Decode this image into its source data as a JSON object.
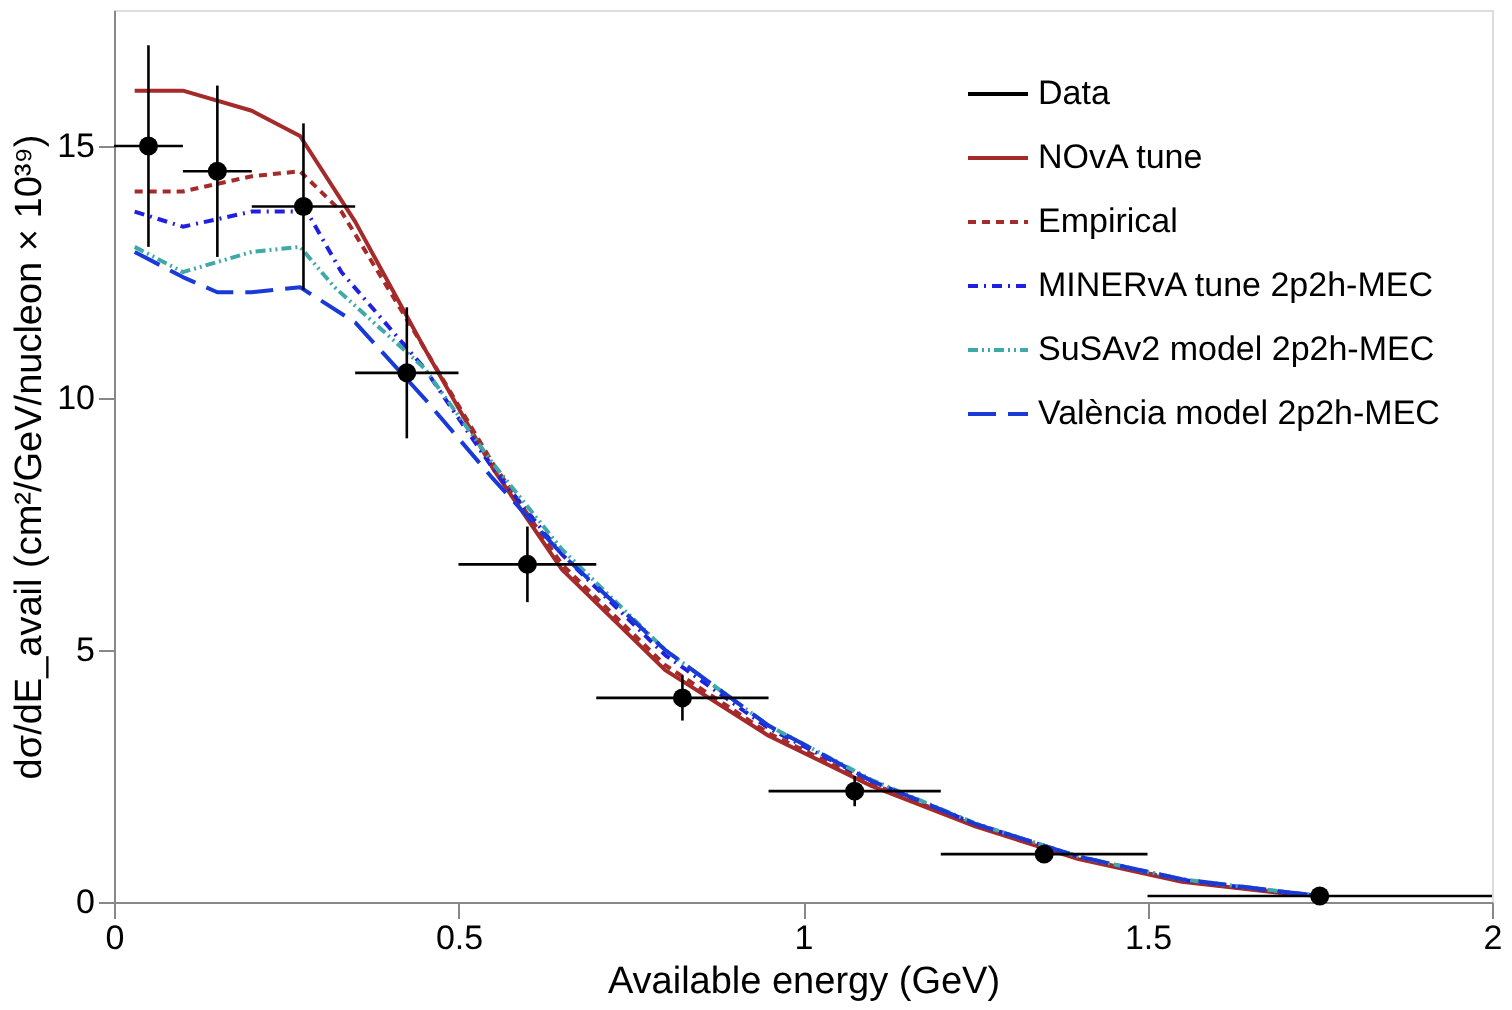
{
  "chart_data": {
    "type": "line",
    "xlabel": "Available energy (GeV)",
    "ylabel": "dσ/dE_avail (cm²/GeV/nucleon × 10³⁹)",
    "xlim": [
      0,
      2
    ],
    "ylim": [
      0,
      17.7
    ],
    "xticks": [
      {
        "value": 0,
        "label": "0"
      },
      0.5,
      {
        "value": 1,
        "label": "1"
      },
      1.5,
      {
        "value": 2,
        "label": "2"
      }
    ],
    "yticks": [
      0,
      5,
      10,
      15
    ],
    "grid": false,
    "legend": "top right",
    "series": [
      {
        "name": "Data",
        "type": "scatter",
        "marker": "circle",
        "color": "#000000",
        "x": [
          0.05,
          0.15,
          0.275,
          0.425,
          0.6,
          0.825,
          1.075,
          1.35,
          1.75
        ],
        "values": [
          15.0,
          14.5,
          13.8,
          10.5,
          6.7,
          4.05,
          2.2,
          0.95,
          0.12
        ],
        "errors": [
          2.0,
          1.7,
          1.65,
          1.3,
          0.75,
          0.45,
          0.3,
          0.1,
          null
        ],
        "xerrors": [
          [
            0,
            0.1
          ],
          [
            0.1,
            0.2
          ],
          [
            0.2,
            0.35
          ],
          [
            0.35,
            0.5
          ],
          [
            0.5,
            0.7
          ],
          [
            0.7,
            0.95
          ],
          [
            0.95,
            1.2
          ],
          [
            1.2,
            1.5
          ],
          [
            1.5,
            2.0
          ]
        ]
      },
      {
        "name": "NOvA tune",
        "line_style": "solid",
        "color": "#a52a2a",
        "x": [
          0.03,
          0.1,
          0.2,
          0.27,
          0.35,
          0.45,
          0.55,
          0.65,
          0.8,
          0.95,
          1.1,
          1.25,
          1.4,
          1.55,
          1.7,
          1.75
        ],
        "values": [
          16.1,
          16.1,
          15.7,
          15.2,
          13.5,
          11.0,
          8.6,
          6.6,
          4.6,
          3.3,
          2.3,
          1.5,
          0.85,
          0.4,
          0.17,
          0.12
        ]
      },
      {
        "name": "Empirical",
        "line_style": "dashed",
        "color": "#a52a2a",
        "x": [
          0.03,
          0.1,
          0.2,
          0.27,
          0.33,
          0.45,
          0.55,
          0.65,
          0.8,
          0.95,
          1.1,
          1.25,
          1.4,
          1.55,
          1.7,
          1.75
        ],
        "values": [
          14.1,
          14.1,
          14.4,
          14.5,
          13.7,
          11.0,
          8.7,
          6.7,
          4.7,
          3.35,
          2.35,
          1.52,
          0.87,
          0.42,
          0.18,
          0.12
        ]
      },
      {
        "name": "MINERvA tune 2p2h-MEC",
        "line_style": "dashdot",
        "color": "#2020e0",
        "x": [
          0.03,
          0.1,
          0.2,
          0.28,
          0.33,
          0.45,
          0.55,
          0.65,
          0.8,
          0.95,
          1.1,
          1.25,
          1.4,
          1.55,
          1.7,
          1.75
        ],
        "values": [
          13.7,
          13.4,
          13.7,
          13.7,
          12.5,
          10.6,
          8.6,
          6.9,
          4.9,
          3.45,
          2.4,
          1.55,
          0.9,
          0.44,
          0.19,
          0.12
        ]
      },
      {
        "name": "SuSAv2 model 2p2h-MEC",
        "line_style": "dashdotdot",
        "color": "#3fa9a9",
        "x": [
          0.03,
          0.1,
          0.2,
          0.27,
          0.32,
          0.45,
          0.55,
          0.65,
          0.8,
          0.95,
          1.1,
          1.25,
          1.4,
          1.55,
          1.7,
          1.75
        ],
        "values": [
          13.0,
          12.5,
          12.9,
          13.0,
          12.2,
          10.6,
          8.7,
          7.0,
          5.0,
          3.5,
          2.42,
          1.56,
          0.9,
          0.45,
          0.2,
          0.12
        ]
      },
      {
        "name": "València model 2p2h-MEC",
        "line_style": "longdash",
        "color": "#1a3ad8",
        "x": [
          0.03,
          0.1,
          0.15,
          0.2,
          0.27,
          0.35,
          0.45,
          0.55,
          0.65,
          0.8,
          0.95,
          1.1,
          1.25,
          1.4,
          1.55,
          1.7,
          1.75
        ],
        "values": [
          12.9,
          12.4,
          12.1,
          12.1,
          12.2,
          11.5,
          10.0,
          8.4,
          6.9,
          5.0,
          3.5,
          2.4,
          1.55,
          0.9,
          0.45,
          0.2,
          0.12
        ]
      }
    ]
  }
}
